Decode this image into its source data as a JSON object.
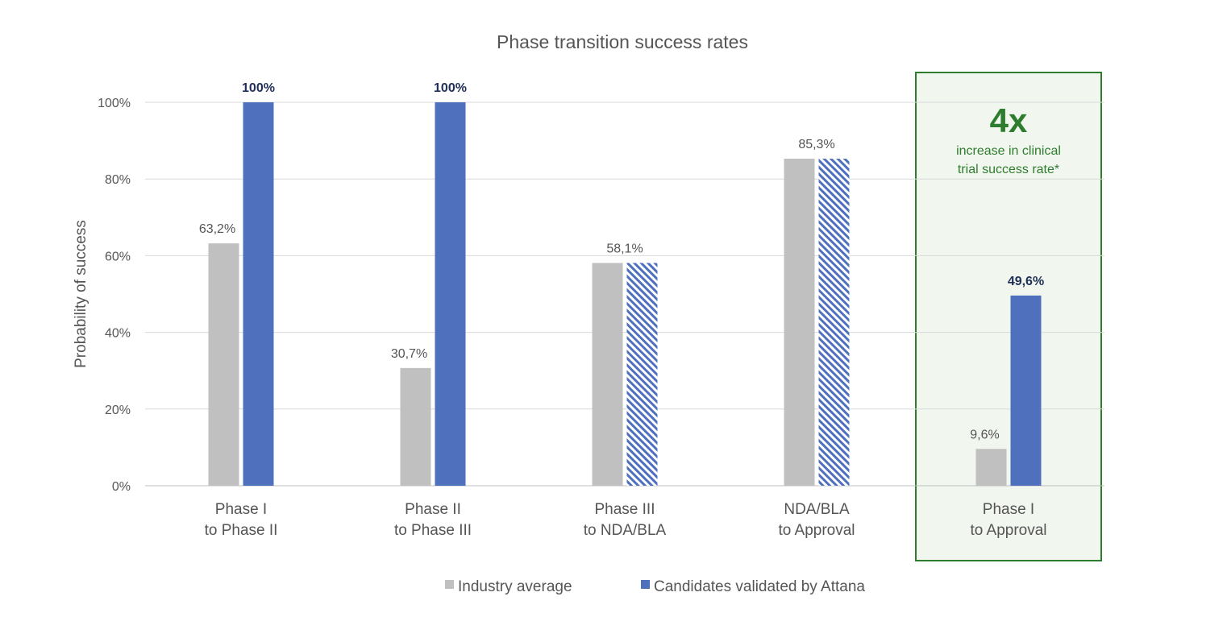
{
  "chart_data": {
    "type": "bar",
    "title": "Phase transition success rates",
    "ylabel": "Probability of success",
    "xlabel": "",
    "ylim": [
      0,
      100
    ],
    "yticks": [
      0,
      20,
      40,
      60,
      80,
      100
    ],
    "ytick_labels": [
      "0%",
      "20%",
      "40%",
      "60%",
      "80%",
      "100%"
    ],
    "categories": [
      [
        "Phase I",
        "to Phase II"
      ],
      [
        "Phase II",
        "to Phase III"
      ],
      [
        "Phase III",
        "to NDA/BLA"
      ],
      [
        "NDA/BLA",
        "to Approval"
      ],
      [
        "Phase I",
        "to Approval"
      ]
    ],
    "series": [
      {
        "name": "Industry average",
        "color": "#c0c0c0",
        "values": [
          63.2,
          30.7,
          58.1,
          85.3,
          9.6
        ],
        "labels": [
          "63,2%",
          "30,7%",
          "58,1%",
          "85,3%",
          "9,6%"
        ]
      },
      {
        "name": "Candidates validated by Attana",
        "color": "#4f70bd",
        "values": [
          100,
          100,
          58.1,
          85.3,
          49.6
        ],
        "labels": [
          "100%",
          "100%",
          "",
          "",
          "49,6%"
        ],
        "hatched": [
          false,
          false,
          true,
          true,
          false
        ]
      }
    ],
    "grid": true,
    "legend_position": "bottom",
    "highlight": {
      "category_index": 4,
      "big_text": "4x",
      "lines": [
        "increase in clinical",
        "trial success rate*"
      ],
      "border_color": "#2e7d2e",
      "fill_color": "#f1f6ef"
    }
  }
}
